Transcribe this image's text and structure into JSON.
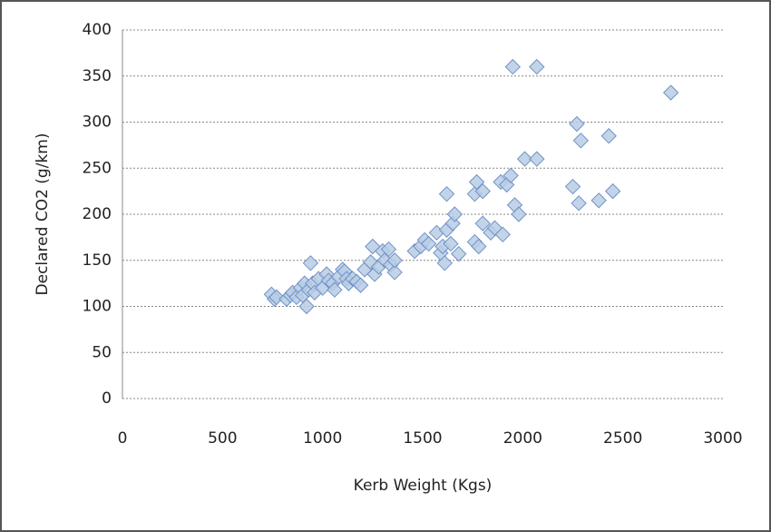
{
  "chart_data": {
    "type": "scatter",
    "x_label": "Kerb Weight (Kgs)",
    "y_label": "Declared CO2 (g/km)",
    "x": [
      745,
      760,
      770,
      820,
      840,
      850,
      870,
      890,
      900,
      910,
      920,
      930,
      940,
      950,
      960,
      980,
      1000,
      1020,
      1030,
      1050,
      1060,
      1080,
      1100,
      1110,
      1120,
      1130,
      1150,
      1170,
      1190,
      1210,
      1240,
      1250,
      1260,
      1280,
      1300,
      1310,
      1330,
      1340,
      1360,
      1360,
      1460,
      1490,
      1510,
      1530,
      1570,
      1590,
      1600,
      1610,
      1620,
      1620,
      1640,
      1650,
      1660,
      1680,
      1760,
      1760,
      1770,
      1780,
      1800,
      1800,
      1840,
      1860,
      1890,
      1900,
      1920,
      1940,
      1950,
      1960,
      1980,
      2010,
      2070,
      2070,
      2250,
      2270,
      2280,
      2290,
      2380,
      2430,
      2450,
      2740
    ],
    "values": [
      113,
      108,
      110,
      108,
      112,
      115,
      110,
      120,
      112,
      125,
      100,
      118,
      147,
      125,
      115,
      130,
      120,
      135,
      128,
      125,
      118,
      132,
      140,
      138,
      130,
      125,
      130,
      127,
      123,
      140,
      148,
      165,
      135,
      143,
      160,
      150,
      162,
      145,
      137,
      150,
      160,
      165,
      172,
      168,
      180,
      158,
      165,
      147,
      222,
      183,
      168,
      190,
      200,
      157,
      222,
      170,
      235,
      165,
      225,
      190,
      180,
      185,
      235,
      178,
      232,
      242,
      360,
      210,
      200,
      260,
      360,
      260,
      230,
      298,
      212,
      280,
      215,
      285,
      225,
      332
    ],
    "color": "#b9cde5",
    "edge_color": "#6f93c6",
    "xlim": [
      0,
      3000
    ],
    "xticks": [
      0,
      500,
      1000,
      1500,
      2000,
      2500,
      3000
    ],
    "ylim": [
      0,
      400
    ],
    "yticks": [
      0,
      50,
      100,
      150,
      200,
      250,
      300,
      350,
      400
    ],
    "grid": true
  }
}
